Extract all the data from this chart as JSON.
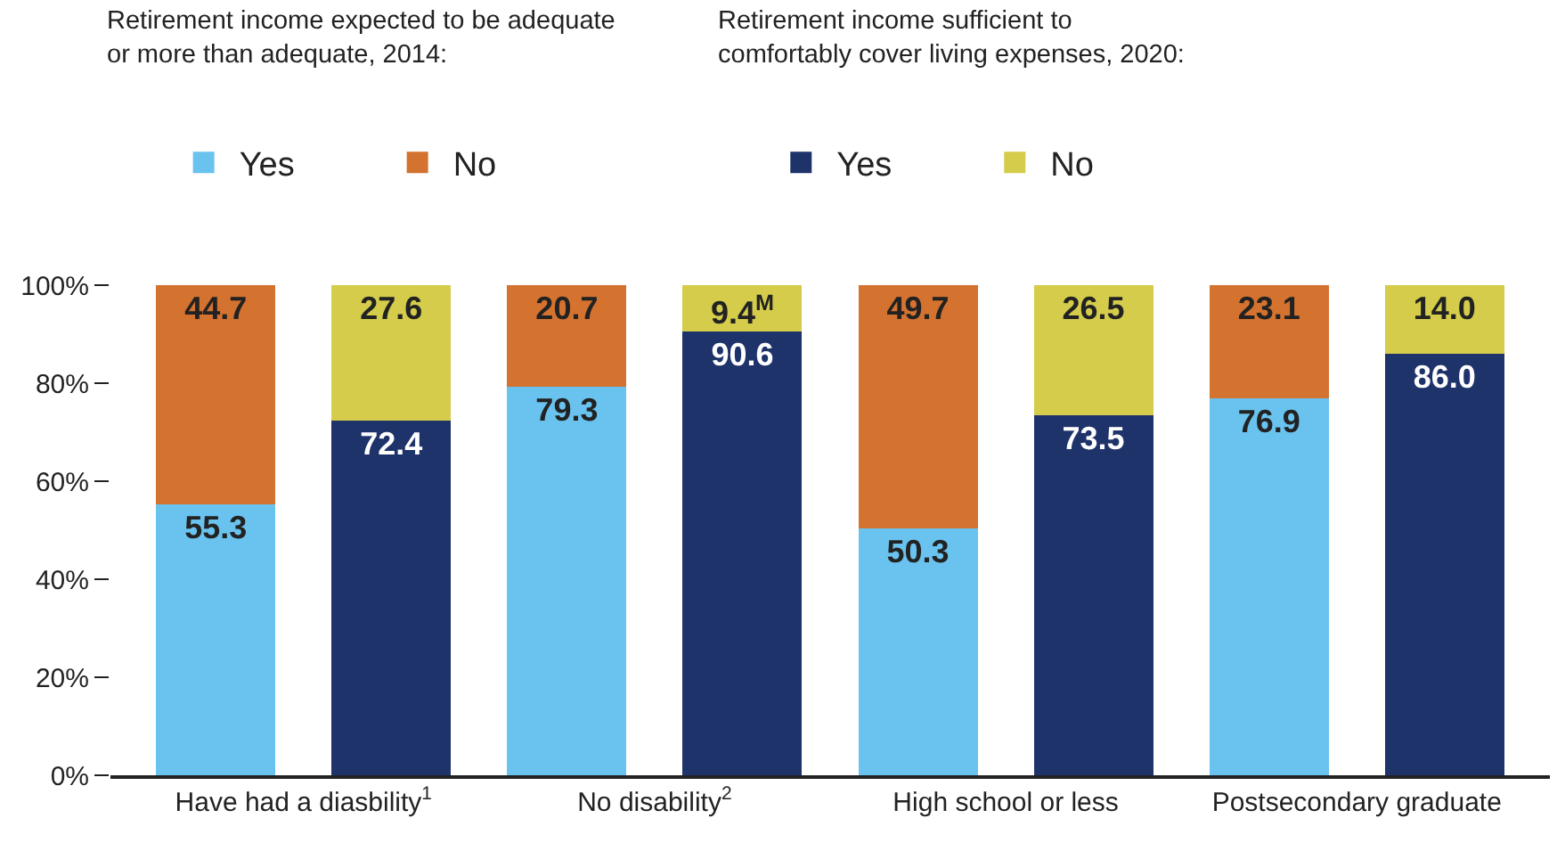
{
  "chart_data": {
    "type": "bar",
    "stacked": true,
    "categories": [
      "Have had a diasbility$^{1}$",
      null,
      "No disability$^{2}$",
      null,
      "High school or less",
      null,
      "Postsecondary graduate",
      null
    ],
    "series": [
      {
        "name": "Yes",
        "color": "#6ac2ee",
        "values": [
          55.3,
          null,
          79.3,
          null,
          50.3,
          null,
          76.9,
          null
        ],
        "value_labels": [
          "55.3",
          null,
          "79.3",
          null,
          "50.3",
          null,
          "76.9",
          null
        ]
      },
      {
        "name": "No",
        "color": "#d4722f",
        "values": [
          44.7,
          null,
          20.7,
          null,
          49.7,
          null,
          23.1,
          null
        ],
        "value_labels": [
          "44.7",
          null,
          "20.7",
          null,
          "49.7",
          null,
          "23.1",
          null
        ]
      },
      {
        "name": "Yes",
        "color": "#1f336b",
        "values": [
          null,
          72.4,
          null,
          90.6,
          null,
          73.5,
          null,
          86.0
        ],
        "value_labels": [
          null,
          "72.4",
          null,
          "90.6",
          null,
          "73.5",
          null,
          "86.0"
        ]
      },
      {
        "name": "No",
        "color": "#d4cc4a",
        "values": [
          null,
          27.6,
          null,
          9.4,
          null,
          26.5,
          null,
          14.0
        ],
        "value_labels": [
          null,
          "27.6",
          null,
          "9.4$^{M}$",
          null,
          "26.5",
          null,
          "14.0"
        ]
      }
    ],
    "annotations": [
      "Retirement income expected to be adequate or more than adequate, 2014:",
      "Retirement income sufficient to comfortably cover living expenses, 2020:"
    ],
    "ylim": [
      0,
      100
    ],
    "yticks": [
      {
        "value": 0,
        "label": "0%"
      },
      {
        "value": 20,
        "label": "20%"
      },
      {
        "value": 40,
        "label": "40%"
      },
      {
        "value": 60,
        "label": "60%"
      },
      {
        "value": 80,
        "label": "80%"
      },
      {
        "value": 100,
        "label": "100%"
      }
    ],
    "grid": false,
    "legend": "top"
  }
}
